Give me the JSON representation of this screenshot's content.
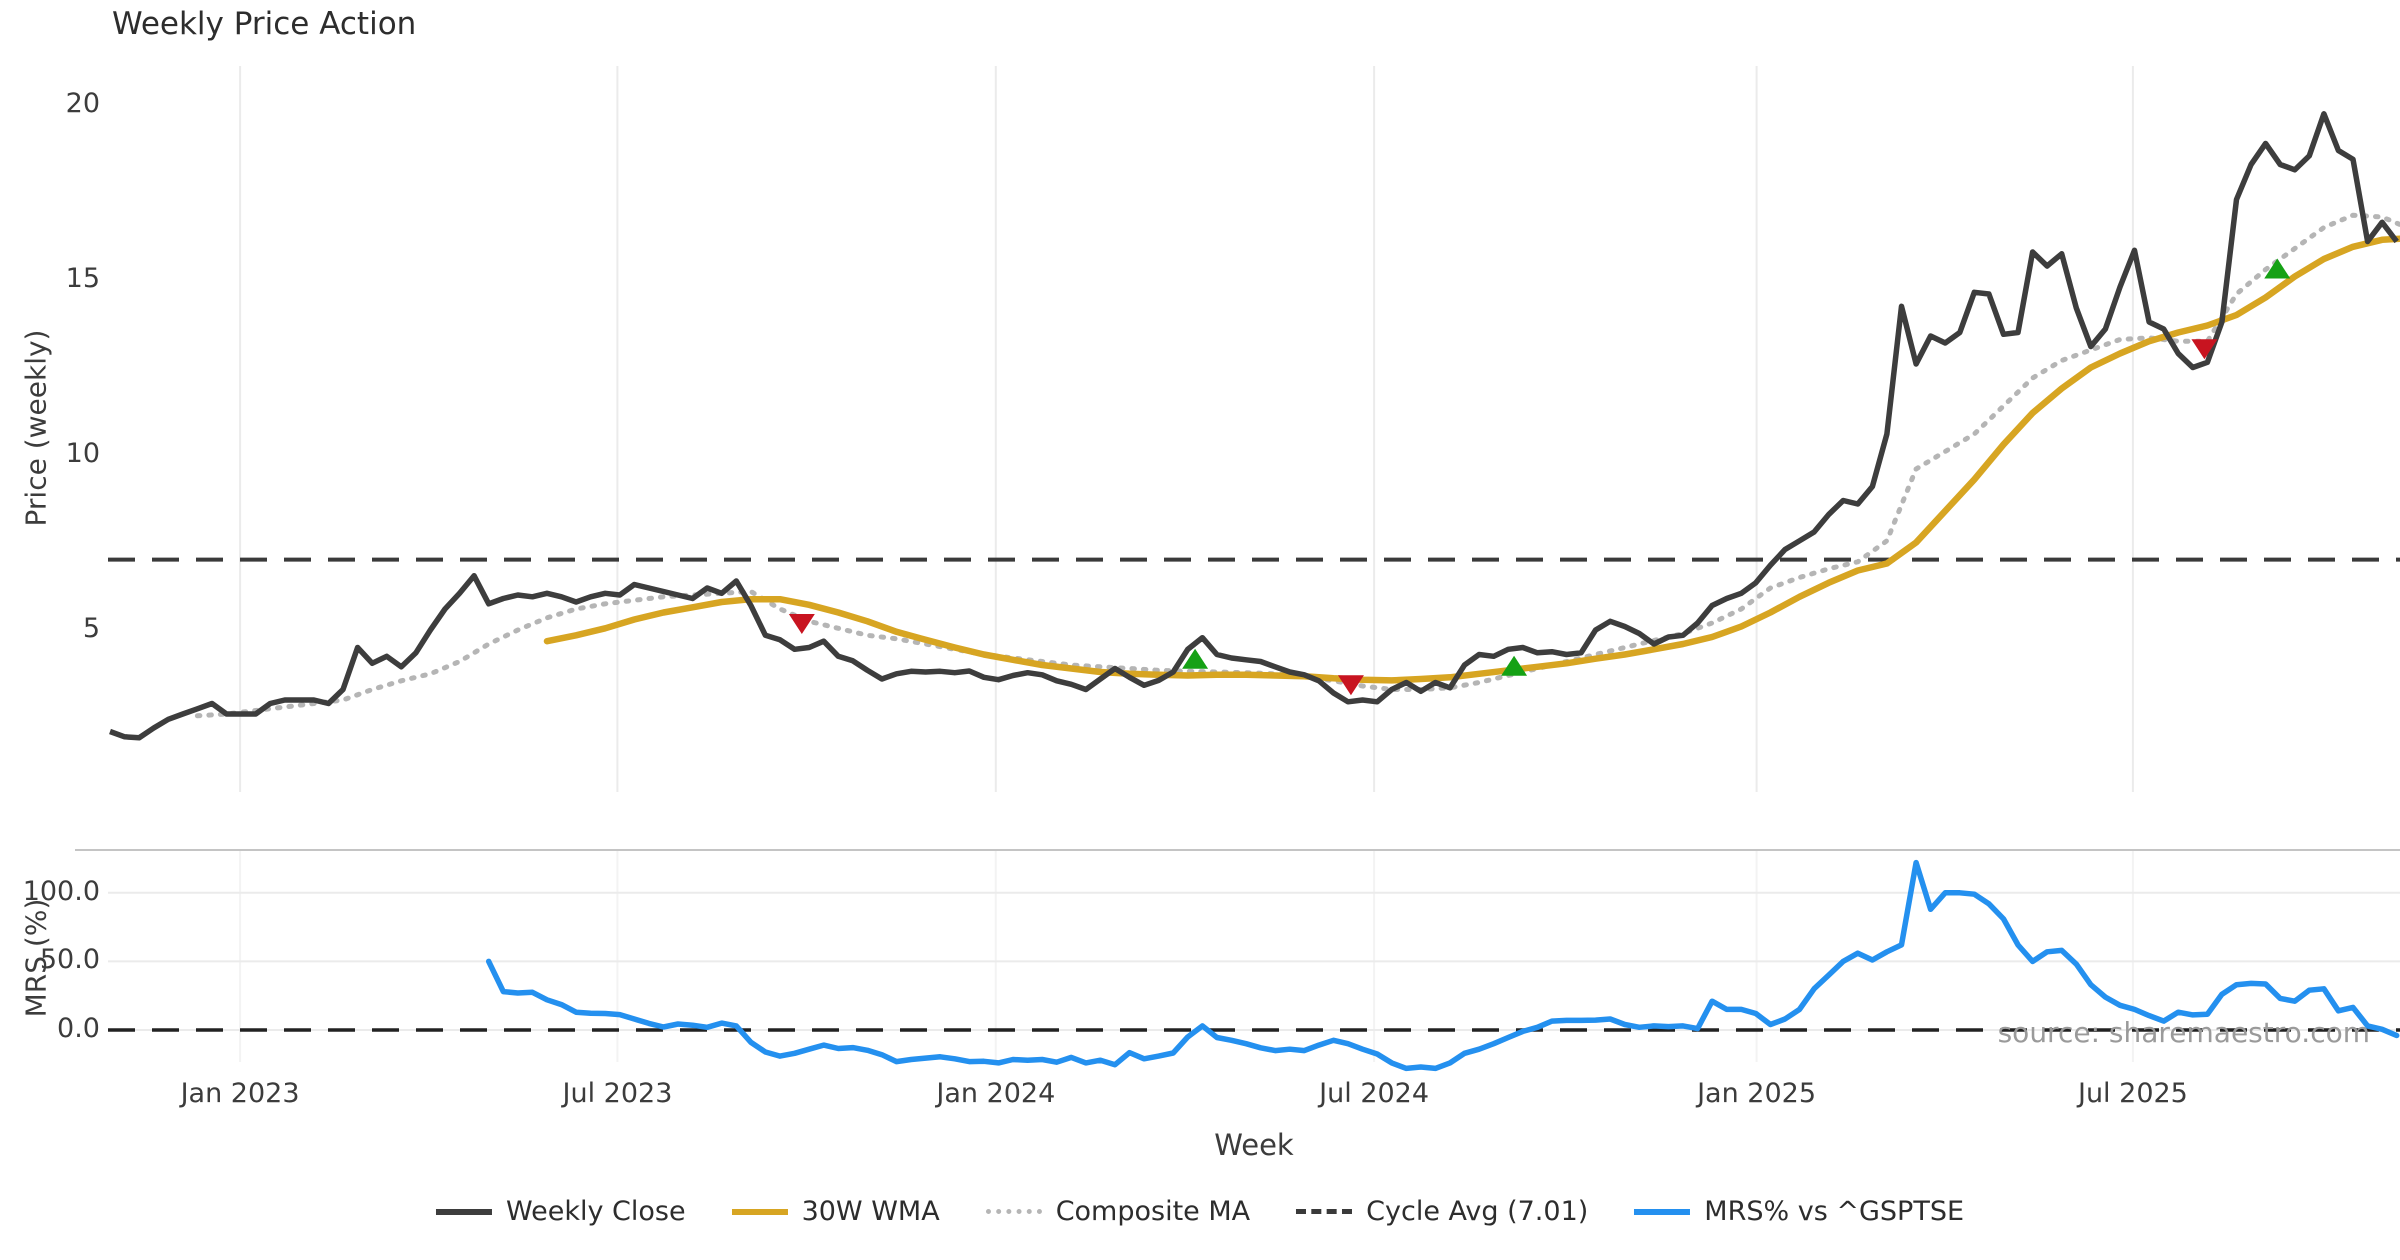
{
  "title": "Weekly Price Action",
  "source_note": "source: sharemaestro.com",
  "colors": {
    "weekly_close": "#3d3d3d",
    "wma_30w": "#d7a522",
    "composite_ma": "#b5b5b5",
    "cycle_avg": "#3a3a3a",
    "mrs": "#2490ef",
    "sell_marker": "#c81420",
    "buy_marker": "#15a115",
    "gridline": "#ebebeb",
    "panel_border": "#c4c4c4"
  },
  "chart_data": [
    {
      "type": "line",
      "panel": "price",
      "ylabel": "Price (weekly)",
      "xlabel": "Week",
      "yticks": [
        5,
        10,
        15,
        20
      ],
      "ylim": [
        1.3,
        21.2
      ],
      "grid": "vertical-only",
      "xticks": [
        {
          "label": "Jan 2023",
          "week": 8.93
        },
        {
          "label": "Jul 2023",
          "week": 34.84
        },
        {
          "label": "Jan 2024",
          "week": 60.82
        },
        {
          "label": "Jul 2024",
          "week": 86.79
        },
        {
          "label": "Jan 2025",
          "week": 113.05
        },
        {
          "label": "Jul 2025",
          "week": 138.89
        }
      ],
      "series": [
        {
          "name": "Weekly Close",
          "style": "solid",
          "start_week": 0,
          "step": 1,
          "values": [
            2.1,
            1.95,
            1.92,
            2.2,
            2.45,
            2.6,
            2.75,
            2.9,
            2.6,
            2.6,
            2.6,
            2.9,
            3.0,
            3.0,
            3.0,
            2.9,
            3.3,
            4.5,
            4.05,
            4.25,
            3.95,
            4.35,
            5.0,
            5.6,
            6.05,
            6.55,
            5.75,
            5.9,
            6.0,
            5.95,
            6.05,
            5.95,
            5.8,
            5.95,
            6.05,
            6.0,
            6.3,
            6.2,
            6.1,
            6.0,
            5.9,
            6.2,
            6.05,
            6.4,
            5.7,
            4.85,
            4.72,
            4.45,
            4.5,
            4.68,
            4.25,
            4.12,
            3.85,
            3.6,
            3.75,
            3.82,
            3.8,
            3.82,
            3.78,
            3.83,
            3.65,
            3.58,
            3.7,
            3.78,
            3.72,
            3.55,
            3.45,
            3.3,
            3.6,
            3.9,
            3.65,
            3.42,
            3.56,
            3.8,
            4.45,
            4.78,
            4.3,
            4.2,
            4.15,
            4.1,
            3.95,
            3.8,
            3.72,
            3.55,
            3.2,
            2.95,
            3.0,
            2.95,
            3.3,
            3.5,
            3.25,
            3.5,
            3.35,
            4.0,
            4.3,
            4.25,
            4.45,
            4.5,
            4.35,
            4.38,
            4.3,
            4.35,
            5.0,
            5.25,
            5.1,
            4.9,
            4.6,
            4.8,
            4.85,
            5.2,
            5.7,
            5.9,
            6.05,
            6.35,
            6.85,
            7.3,
            7.55,
            7.8,
            8.3,
            8.7,
            8.6,
            9.1,
            10.6,
            14.25,
            12.6,
            13.4,
            13.2,
            13.5,
            14.65,
            14.6,
            13.45,
            13.5,
            15.8,
            15.4,
            15.75,
            14.2,
            13.1,
            13.6,
            14.8,
            15.85,
            13.8,
            13.6,
            12.9,
            12.5,
            12.65,
            13.8,
            17.3,
            18.3,
            18.9,
            18.3,
            18.15,
            18.55,
            19.75,
            18.7,
            18.45,
            16.1,
            16.65,
            16.1
          ]
        },
        {
          "name": "30W WMA",
          "style": "solid",
          "start_week": 30,
          "step": 2,
          "values": [
            4.68,
            4.85,
            5.05,
            5.3,
            5.5,
            5.65,
            5.8,
            5.88,
            5.88,
            5.72,
            5.5,
            5.25,
            4.95,
            4.72,
            4.5,
            4.3,
            4.15,
            4.0,
            3.9,
            3.8,
            3.75,
            3.72,
            3.7,
            3.72,
            3.72,
            3.7,
            3.68,
            3.62,
            3.58,
            3.56,
            3.6,
            3.65,
            3.75,
            3.85,
            3.95,
            4.05,
            4.18,
            4.3,
            4.45,
            4.6,
            4.8,
            5.1,
            5.5,
            5.95,
            6.35,
            6.7,
            6.9,
            7.5,
            8.4,
            9.3,
            10.3,
            11.2,
            11.9,
            12.5,
            12.9,
            13.25,
            13.5,
            13.7,
            14.0,
            14.5,
            15.1,
            15.6,
            15.95,
            16.15,
            16.2
          ]
        },
        {
          "name": "Composite MA",
          "style": "dotted",
          "start_week": 6,
          "step": 2,
          "values": [
            2.55,
            2.6,
            2.7,
            2.8,
            2.9,
            3.0,
            3.3,
            3.55,
            3.75,
            4.1,
            4.6,
            5.0,
            5.35,
            5.6,
            5.75,
            5.85,
            5.95,
            6.0,
            6.05,
            6.1,
            5.6,
            5.25,
            5.05,
            4.85,
            4.75,
            4.6,
            4.45,
            4.3,
            4.2,
            4.1,
            4.0,
            3.95,
            3.9,
            3.85,
            3.82,
            3.8,
            3.78,
            3.75,
            3.68,
            3.55,
            3.4,
            3.3,
            3.3,
            3.35,
            3.5,
            3.7,
            3.9,
            4.1,
            4.3,
            4.5,
            4.7,
            4.9,
            5.2,
            5.6,
            6.2,
            6.5,
            6.75,
            6.95,
            7.55,
            9.6,
            10.1,
            10.6,
            11.4,
            12.2,
            12.7,
            13.0,
            13.3,
            13.35,
            13.25,
            13.25,
            14.6,
            15.3,
            15.9,
            16.5,
            16.85,
            16.8,
            16.45
          ]
        },
        {
          "name": "Cycle Avg (7.01)",
          "style": "dashed",
          "type": "hline",
          "value": 7.01
        }
      ],
      "markers": {
        "sell": [
          {
            "week": 47.5,
            "price": 5.2
          },
          {
            "week": 85.2,
            "price": 3.45
          },
          {
            "week": 143.8,
            "price": 13.05
          }
        ],
        "buy": [
          {
            "week": 74.5,
            "price": 4.15
          },
          {
            "week": 96.4,
            "price": 3.95
          },
          {
            "week": 148.8,
            "price": 15.3
          }
        ]
      }
    },
    {
      "type": "line",
      "panel": "mrs",
      "ylabel": "MRS (%)",
      "yticks": [
        0,
        50,
        100
      ],
      "ytick_labels": [
        "0.0",
        "50.0",
        "100.0"
      ],
      "ylim": [
        -40,
        132
      ],
      "zero_line_dashed": true,
      "series": [
        {
          "name": "MRS% vs ^GSPTSE",
          "style": "solid",
          "start_week": 26,
          "step": 1,
          "values": [
            50,
            28,
            27,
            27.5,
            22,
            18.5,
            13,
            12.2,
            12,
            11.2,
            8,
            4.8,
            2.2,
            4.4,
            3.5,
            2,
            5,
            3,
            -9,
            -16,
            -19,
            -17,
            -14,
            -11,
            -13.5,
            -12.8,
            -14.8,
            -18,
            -23,
            -21.5,
            -20.5,
            -19.5,
            -21,
            -23,
            -22.8,
            -24,
            -21.5,
            -22,
            -21.5,
            -23.5,
            -20,
            -24,
            -22,
            -25.3,
            -16.5,
            -21,
            -19,
            -16.8,
            -5,
            3,
            -5.5,
            -7.5,
            -10,
            -13,
            -15,
            -14,
            -15,
            -11,
            -7.5,
            -10,
            -14,
            -17.5,
            -24,
            -28,
            -27,
            -28,
            -24,
            -17,
            -14,
            -10,
            -5.5,
            -1,
            2,
            6.5,
            7,
            7,
            7.2,
            8,
            4,
            2,
            3,
            2.5,
            3,
            1,
            21,
            15,
            15,
            12,
            4,
            8,
            15,
            30,
            40,
            50,
            56,
            51,
            57,
            62,
            122,
            88,
            100,
            100,
            99,
            92,
            81,
            62,
            50,
            57,
            58,
            48,
            33,
            24,
            18,
            15,
            10.5,
            6.5,
            13,
            11,
            11.5,
            26,
            33,
            34,
            33.5,
            23,
            21,
            29,
            30,
            14,
            16.5,
            3,
            0.5,
            -4
          ]
        }
      ]
    }
  ],
  "legend": {
    "items": [
      {
        "label": "Weekly Close",
        "color": "#3d3d3d",
        "dash": "solid"
      },
      {
        "label": "30W WMA",
        "color": "#d7a522",
        "dash": "solid"
      },
      {
        "label": "Composite MA",
        "color": "#b5b5b5",
        "dash": "dotted"
      },
      {
        "label": "Cycle Avg (7.01)",
        "color": "#3a3a3a",
        "dash": "dashed"
      },
      {
        "label": "MRS% vs ^GSPTSE",
        "color": "#2490ef",
        "dash": "solid"
      }
    ]
  }
}
